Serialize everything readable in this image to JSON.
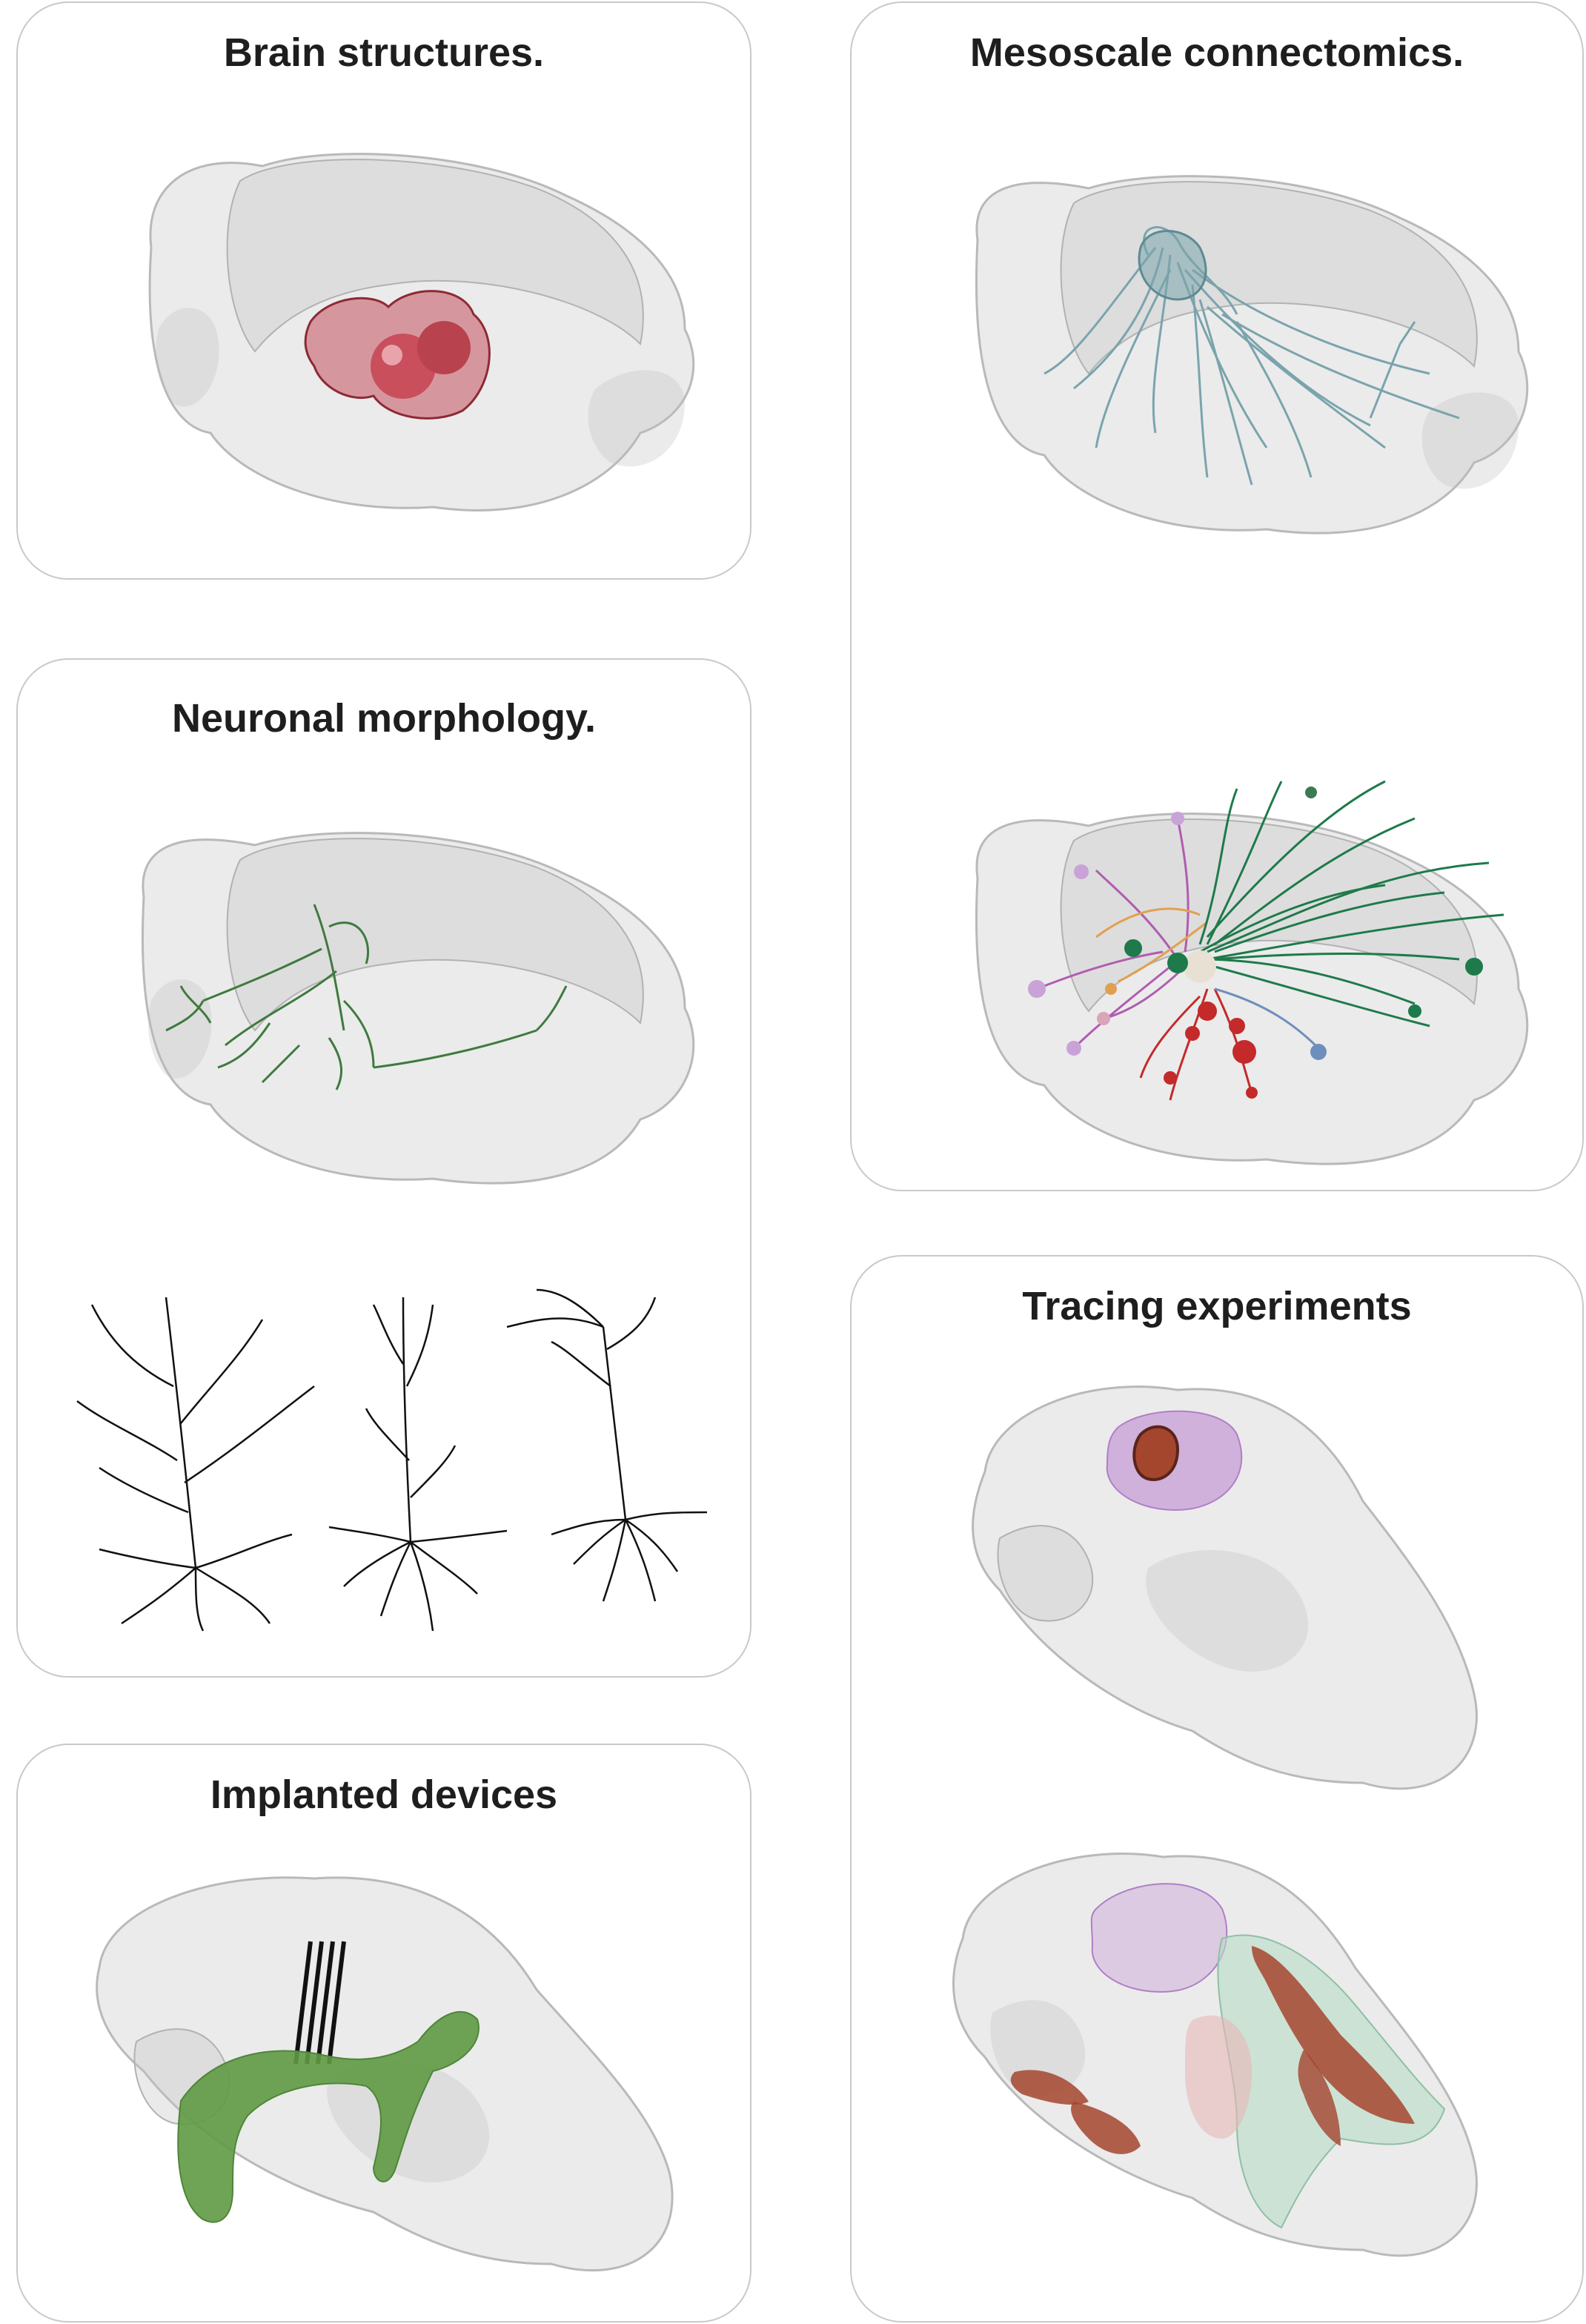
{
  "panels": {
    "brain_structures": {
      "title": "Brain structures."
    },
    "mesoscale": {
      "title": "Mesoscale connectomics."
    },
    "neuronal": {
      "title": "Neuronal morphology."
    },
    "tracing": {
      "title": "Tracing experiments"
    },
    "implanted": {
      "title": "Implanted devices"
    }
  },
  "colors": {
    "panel_border": "#c9c9c9",
    "brain_fill": "#d2d2d2",
    "structure_red": "#c2525d",
    "connectome_teal": "#7aa4ac",
    "neuron_green": "#3f7a3e",
    "neuron_black": "#111111",
    "pink": "#b05cb0",
    "dark_green": "#1e7a4a",
    "red": "#c42a2a",
    "implant_green": "#5f9a45",
    "mint": "#b7dcc7",
    "rust": "#a4452e",
    "lilac": "#c9a2d8"
  }
}
